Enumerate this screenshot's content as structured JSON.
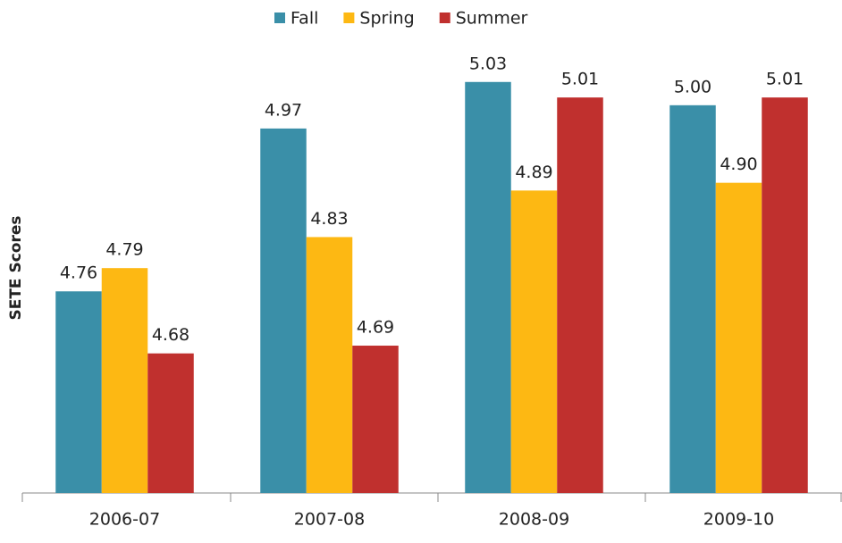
{
  "chart_data": {
    "type": "bar",
    "y_label": "SETE Scores",
    "categories": [
      "2006-07",
      "2007-08",
      "2008-09",
      "2009-10"
    ],
    "series": [
      {
        "name": "Fall",
        "color": "#3a8fa8",
        "values": [
          4.76,
          4.97,
          5.03,
          5.0
        ],
        "value_labels": [
          "4.76",
          "4.97",
          "5.03",
          "5.00"
        ]
      },
      {
        "name": "Spring",
        "color": "#fdb813",
        "values": [
          4.79,
          4.83,
          4.89,
          4.9
        ],
        "value_labels": [
          "4.79",
          "4.83",
          "4.89",
          "4.90"
        ]
      },
      {
        "name": "Summer",
        "color": "#c0302e",
        "values": [
          4.68,
          4.69,
          5.01,
          5.01
        ],
        "value_labels": [
          "4.68",
          "4.69",
          "5.01",
          "5.01"
        ]
      }
    ],
    "ylim": [
      4.5,
      5.1
    ],
    "legend": "top"
  }
}
